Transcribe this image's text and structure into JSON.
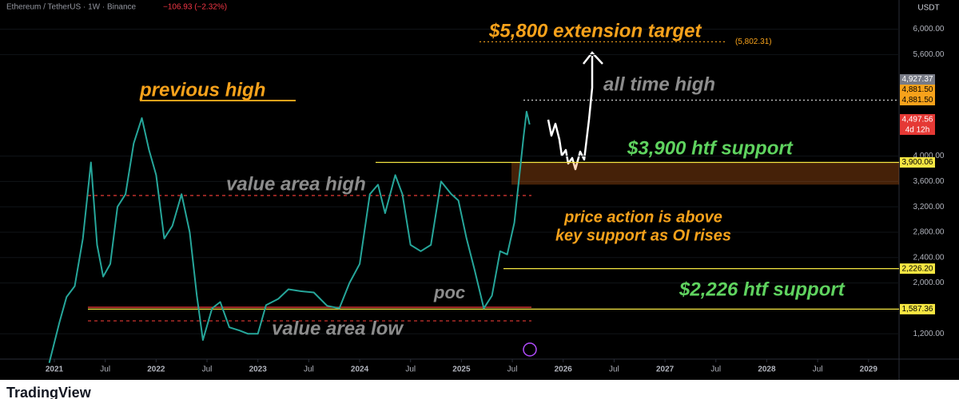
{
  "chart_data": {
    "type": "line",
    "title": "Ethereum / TetherUS · 1W · Binance",
    "change": "−106.93 (−2.32%)",
    "currency": "USDT",
    "brand": "TradingView",
    "color": "#26a69a",
    "x": [
      2020.95,
      2021.05,
      2021.12,
      2021.2,
      2021.28,
      2021.36,
      2021.42,
      2021.48,
      2021.55,
      2021.62,
      2021.7,
      2021.78,
      2021.86,
      2021.93,
      2022.0,
      2022.08,
      2022.16,
      2022.25,
      2022.33,
      2022.4,
      2022.46,
      2022.55,
      2022.63,
      2022.72,
      2022.82,
      2022.9,
      2023.0,
      2023.08,
      2023.2,
      2023.3,
      2023.42,
      2023.55,
      2023.68,
      2023.8,
      2023.9,
      2024.0,
      2024.1,
      2024.18,
      2024.25,
      2024.35,
      2024.42,
      2024.5,
      2024.6,
      2024.7,
      2024.8,
      2024.9,
      2024.97,
      2025.05,
      2025.13,
      2025.22,
      2025.3,
      2025.38,
      2025.45,
      2025.52,
      2025.57,
      2025.61,
      2025.64,
      2025.67
    ],
    "values": [
      740,
      1380,
      1780,
      1950,
      2700,
      3900,
      2600,
      2100,
      2300,
      3200,
      3400,
      4200,
      4600,
      4100,
      3700,
      2700,
      2900,
      3400,
      2800,
      1800,
      1100,
      1600,
      1700,
      1300,
      1250,
      1200,
      1200,
      1650,
      1750,
      1900,
      1870,
      1850,
      1640,
      1600,
      2000,
      2300,
      3400,
      3550,
      3100,
      3700,
      3400,
      2600,
      2500,
      2600,
      3600,
      3400,
      3300,
      2700,
      2200,
      1600,
      1800,
      2500,
      2450,
      2950,
      3700,
      4300,
      4700,
      4497.56
    ],
    "xlim": [
      2020.466,
      2029.3
    ],
    "xticks": [
      2021,
      {
        "value": 2021.5,
        "label": "Jul"
      },
      2022,
      {
        "value": 2022.5,
        "label": "Jul"
      },
      2023,
      {
        "value": 2023.5,
        "label": "Jul"
      },
      2024,
      {
        "value": 2024.5,
        "label": "Jul"
      },
      2025,
      {
        "value": 2025.5,
        "label": "Jul"
      },
      2026,
      {
        "value": 2026.5,
        "label": "Jul"
      },
      2027,
      {
        "value": 2027.5,
        "label": "Jul"
      },
      2028,
      {
        "value": 2028.5,
        "label": "Jul"
      },
      2029
    ],
    "ylim": [
      800,
      6460
    ],
    "yticks": [
      {
        "value": 1200,
        "label": "1,200.00"
      },
      {
        "value": 2000,
        "label": "2,000.00"
      },
      {
        "value": 2400,
        "label": "2,400.00"
      },
      {
        "value": 2800,
        "label": "2,800.00"
      },
      {
        "value": 3200,
        "label": "3,200.00"
      },
      {
        "value": 3600,
        "label": "3,600.00"
      },
      {
        "value": 4000,
        "label": "4,000.00"
      },
      {
        "value": 5600,
        "label": "5,600.00"
      },
      {
        "value": 6000,
        "label": "6,000.00"
      }
    ],
    "zone": [
      3550,
      3900
    ],
    "levels": [
      {
        "value": 5802.31,
        "label": "(5,802.31)",
        "color": "#f7a21b",
        "style": "dotted"
      },
      {
        "value": 4881.5,
        "color": "#d0d0d0",
        "style": "dotted"
      },
      {
        "value": 3900.06,
        "color": "#f5e642",
        "style": "solid"
      },
      {
        "value": 2226.2,
        "color": "#f5e642",
        "style": "solid"
      },
      {
        "value": 1587.36,
        "color": "#f5e642",
        "style": "solid"
      },
      {
        "value": 3378,
        "color": "#e53935",
        "style": "dashed"
      },
      {
        "value": 1617,
        "color": "#e53935",
        "style": "solid"
      },
      {
        "value": 1403,
        "color": "#e53935",
        "style": "dashed"
      }
    ],
    "price_labels": [
      {
        "value": 4927.37,
        "label": "4,927.37",
        "color": "#787b86"
      },
      {
        "value": 4881.5,
        "label": "4,881.50",
        "color": "#f7a21b"
      },
      {
        "value": 4881.5,
        "label": "4,881.50",
        "color": "#f7a21b"
      },
      {
        "value": 4497.56,
        "label": "4,497.56",
        "sublabel": "4d 12h",
        "color": "#e53935"
      },
      {
        "value": 3900.06,
        "label": "3,900.06",
        "color": "#f5e642"
      },
      {
        "value": 2226.2,
        "label": "2,226.20",
        "color": "#f5e642"
      },
      {
        "value": 1587.36,
        "label": "1,587.36",
        "color": "#f5e642"
      }
    ],
    "annotations": [
      {
        "text": "$5,800 extension target",
        "color": "#f7a21b"
      },
      {
        "text": "previous high",
        "color": "#f7a21b"
      },
      {
        "text": "all time high",
        "color": "#8c8c8c"
      },
      {
        "text": "value area high",
        "color": "#8c8c8c"
      },
      {
        "text": "$3,900 htf support",
        "color": "#5fd35f"
      },
      {
        "text": "price action is above",
        "color": "#f7a21b"
      },
      {
        "text": "key support as OI rises",
        "color": "#f7a21b"
      },
      {
        "text": "$2,226 htf support",
        "color": "#5fd35f"
      },
      {
        "text": "poc",
        "color": "#8c8c8c"
      },
      {
        "text": "value area low",
        "color": "#8c8c8c"
      }
    ]
  }
}
